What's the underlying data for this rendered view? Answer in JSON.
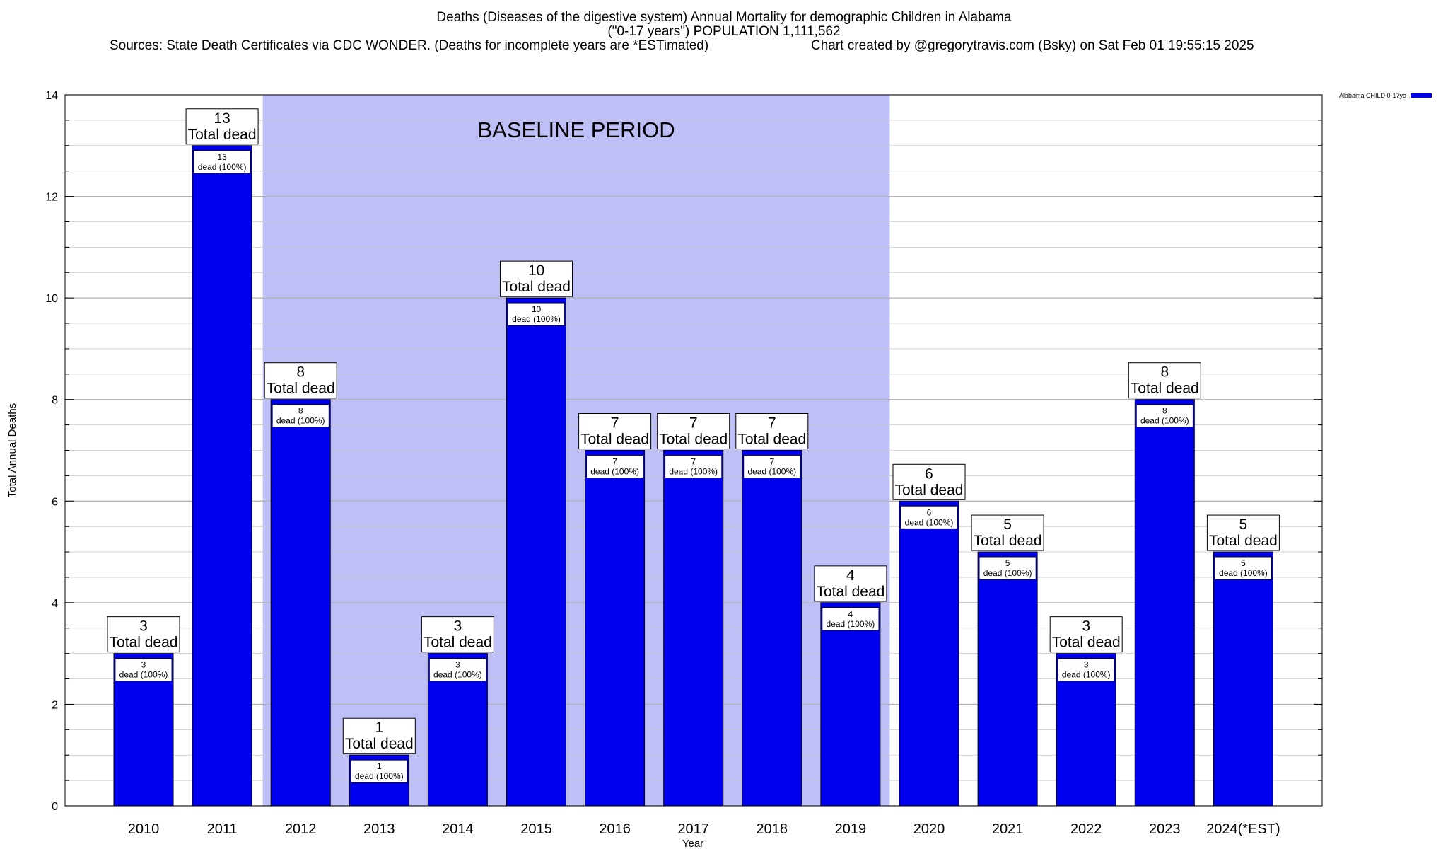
{
  "header": {
    "title_line1": "Deaths (Diseases of the digestive system) Annual Mortality for demographic Children in Alabama",
    "title_line2": "(\"0-17 years\") POPULATION 1,111,562",
    "sources": "Sources: State Death Certificates via CDC WONDER. (Deaths for incomplete years are *ESTimated)",
    "credit": "Chart created by @gregorytravis.com (Bsky) on Sat Feb 01 19:55:15 2025"
  },
  "legend": {
    "label": "Alabama CHILD 0-17yo",
    "color": "#0000ee"
  },
  "colors": {
    "bar": "#0000ee",
    "baseline": "#bfbff8"
  },
  "chart_data": {
    "type": "bar",
    "title": "Deaths (Diseases of the digestive system) Annual Mortality for demographic Children in Alabama",
    "xlabel": "Year",
    "ylabel": "Total Annual Deaths",
    "ylim": [
      0,
      14
    ],
    "yticks": [
      0,
      2,
      4,
      6,
      8,
      10,
      12,
      14
    ],
    "grid": true,
    "legend_position": "top-right",
    "categories": [
      "2010",
      "2011",
      "2012",
      "2013",
      "2014",
      "2015",
      "2016",
      "2017",
      "2018",
      "2019",
      "2020",
      "2021",
      "2022",
      "2023",
      "2024(*EST)"
    ],
    "series": [
      {
        "name": "Alabama CHILD 0-17yo",
        "values": [
          3,
          13,
          8,
          1,
          3,
          10,
          7,
          7,
          7,
          4,
          6,
          5,
          3,
          8,
          5
        ]
      }
    ],
    "total_label_suffix": "Total dead",
    "inner_label_suffix": "dead (100%)",
    "annotations": [
      {
        "text": "BASELINE PERIOD",
        "x_start": "2012",
        "x_end": "2019"
      }
    ]
  }
}
